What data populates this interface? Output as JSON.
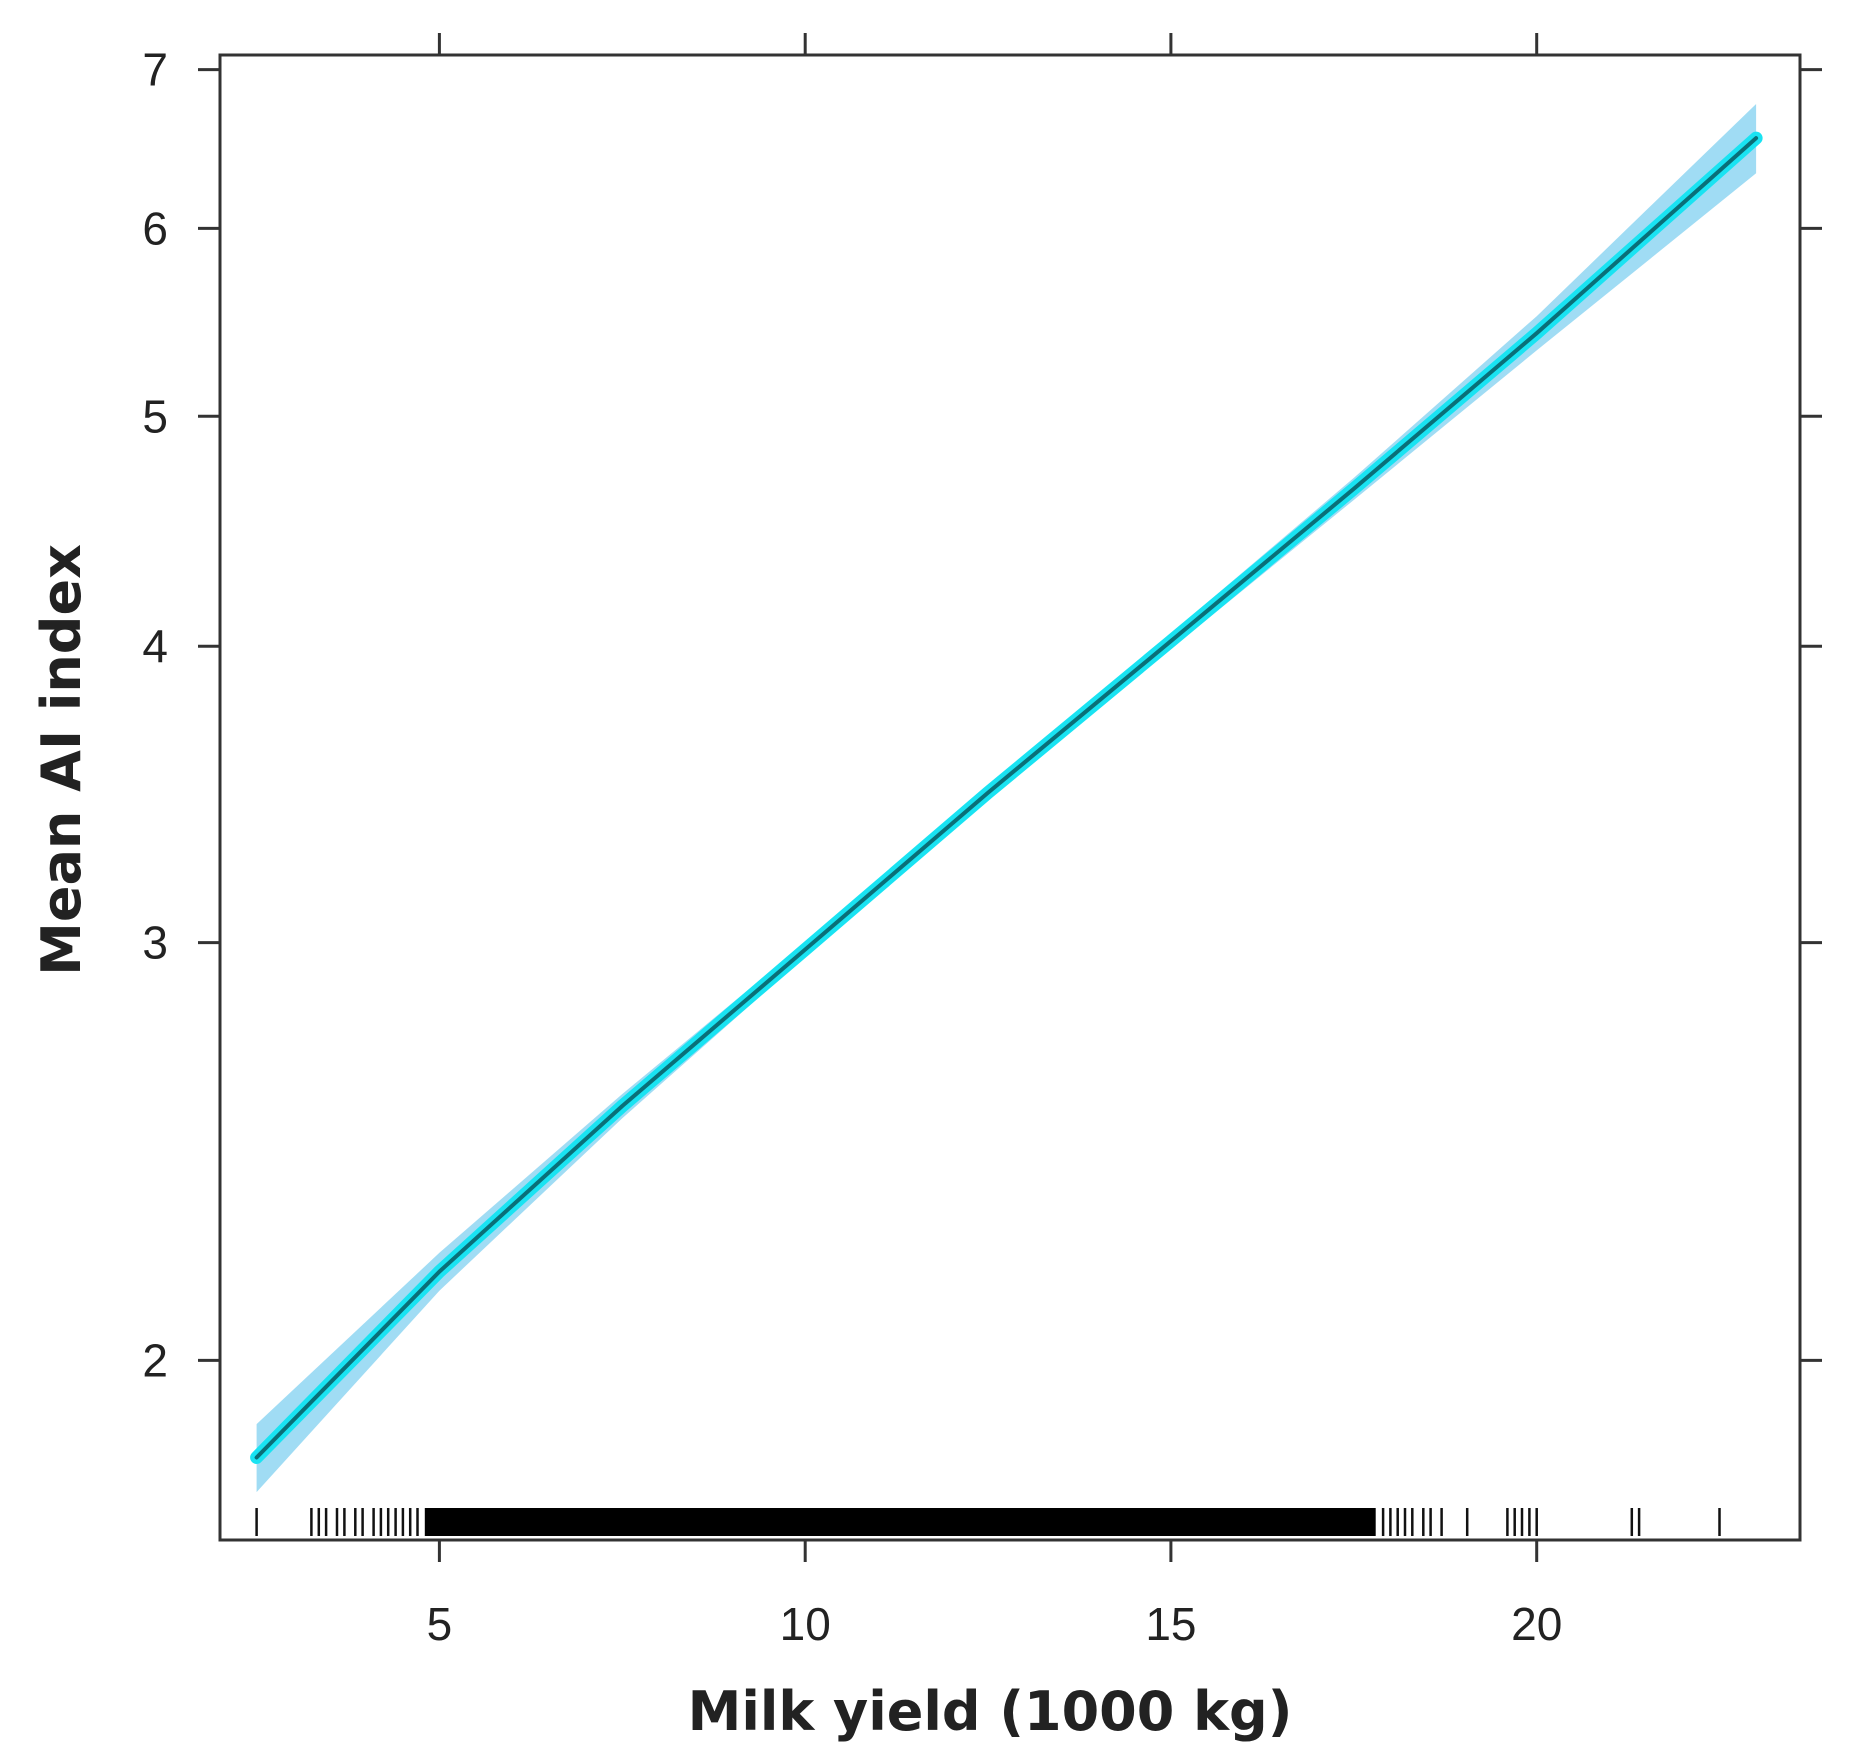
{
  "chart_data": {
    "type": "line",
    "xlabel": "Milk yield (1000 kg)",
    "ylabel": "Mean AI index",
    "xlim": [
      2.0,
      23.6
    ],
    "ylim": [
      1.68,
      7.1
    ],
    "y_scale": "log",
    "grid": false,
    "x_ticks": [
      5,
      10,
      15,
      20
    ],
    "x_tick_labels": [
      "5",
      "10",
      "15",
      "20"
    ],
    "y_ticks": [
      2,
      3,
      4,
      5,
      6,
      7
    ],
    "y_tick_labels": [
      "2",
      "3",
      "4",
      "5",
      "6",
      "7"
    ],
    "series": [
      {
        "x": [
          2.5,
          5,
          7.5,
          10,
          12.5,
          15,
          17.5,
          20,
          23
        ],
        "y": [
          1.82,
          2.18,
          2.56,
          2.98,
          3.47,
          4.02,
          4.66,
          5.42,
          6.55
        ],
        "ci_lower": [
          1.76,
          2.14,
          2.53,
          2.96,
          3.45,
          3.99,
          4.61,
          5.33,
          6.33
        ],
        "ci_upper": [
          1.88,
          2.22,
          2.59,
          3.0,
          3.49,
          4.05,
          4.71,
          5.51,
          6.77
        ],
        "line_color": "#0a6f78",
        "glow_color": "#19e3f2",
        "band_color": "#8fd6f2"
      }
    ],
    "rug_x": [
      2.5,
      3.25,
      3.35,
      3.45,
      3.6,
      3.7,
      3.85,
      3.95,
      4.1,
      4.2,
      4.3,
      4.4,
      4.5,
      4.6,
      4.7,
      17.9,
      18.0,
      18.1,
      18.2,
      18.3,
      18.45,
      18.55,
      18.7,
      19.05,
      19.6,
      19.7,
      19.8,
      19.9,
      20.0,
      21.3,
      21.4,
      22.5
    ],
    "rug_dense_range": [
      4.8,
      17.8
    ]
  }
}
